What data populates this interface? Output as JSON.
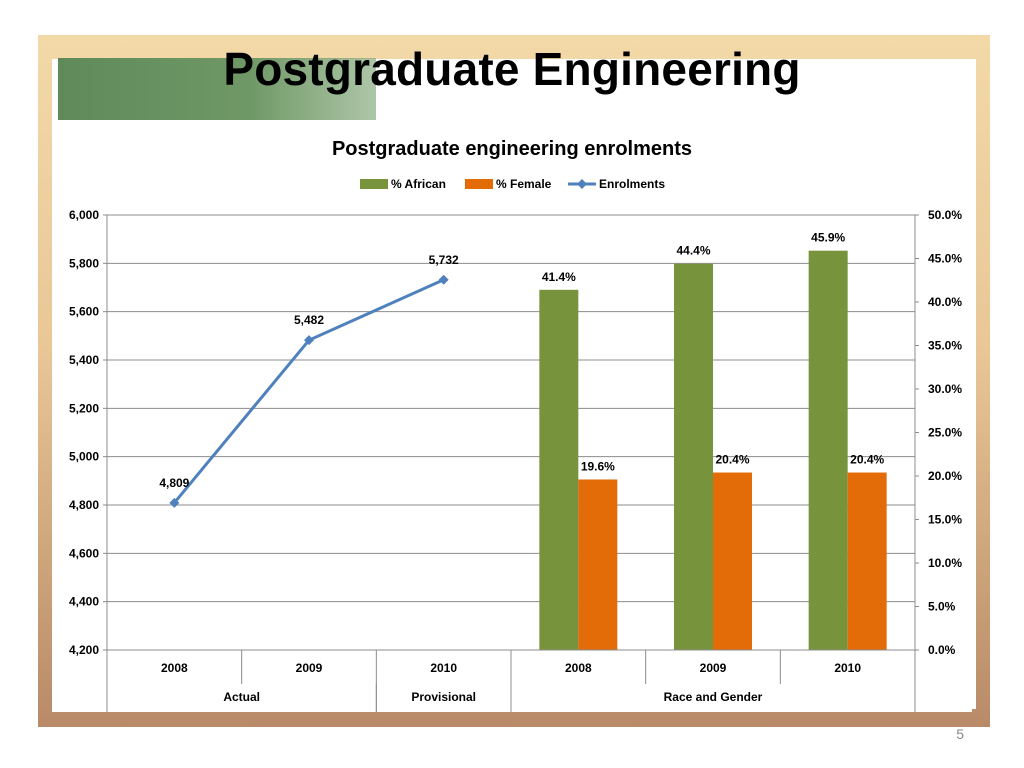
{
  "slide": {
    "title": "Postgraduate Engineering",
    "page_number": "5"
  },
  "chart_data": {
    "type": "bar",
    "title": "Postgraduate engineering enrolments",
    "categories": [
      "2008",
      "2009",
      "2010",
      "2008",
      "2009",
      "2010"
    ],
    "groups": [
      {
        "label": "Actual",
        "span": [
          0,
          1
        ]
      },
      {
        "label": "Provisional",
        "span": [
          2,
          2
        ]
      },
      {
        "label": "Race and Gender",
        "span": [
          3,
          5
        ]
      }
    ],
    "legend": {
      "position": "top",
      "entries": [
        "% African",
        "% Female",
        "Enrolments"
      ]
    },
    "series": [
      {
        "name": "% African",
        "kind": "bar",
        "axis": "right",
        "color": "#77933c",
        "values": [
          null,
          null,
          null,
          41.4,
          44.4,
          45.9
        ],
        "labels": [
          "",
          "",
          "",
          "41.4%",
          "44.4%",
          "45.9%"
        ]
      },
      {
        "name": "% Female",
        "kind": "bar",
        "axis": "right",
        "color": "#e36c09",
        "values": [
          null,
          null,
          null,
          19.6,
          20.4,
          20.4
        ],
        "labels": [
          "",
          "",
          "",
          "19.6%",
          "20.4%",
          "20.4%"
        ]
      },
      {
        "name": "Enrolments",
        "kind": "line",
        "axis": "left",
        "color": "#4f81bd",
        "values": [
          4809,
          5482,
          5732,
          null,
          null,
          null
        ],
        "labels": [
          "4,809",
          "5,482",
          "5,732",
          "",
          "",
          ""
        ]
      }
    ],
    "left_axis": {
      "ylim": [
        4200,
        6000
      ],
      "ticks": [
        "4,200",
        "4,400",
        "4,600",
        "4,800",
        "5,000",
        "5,200",
        "5,400",
        "5,600",
        "5,800",
        "6,000"
      ]
    },
    "right_axis": {
      "ylim": [
        0,
        50
      ],
      "ticks": [
        "0.0%",
        "5.0%",
        "10.0%",
        "15.0%",
        "20.0%",
        "25.0%",
        "30.0%",
        "35.0%",
        "40.0%",
        "45.0%",
        "50.0%"
      ]
    },
    "grid": true
  }
}
